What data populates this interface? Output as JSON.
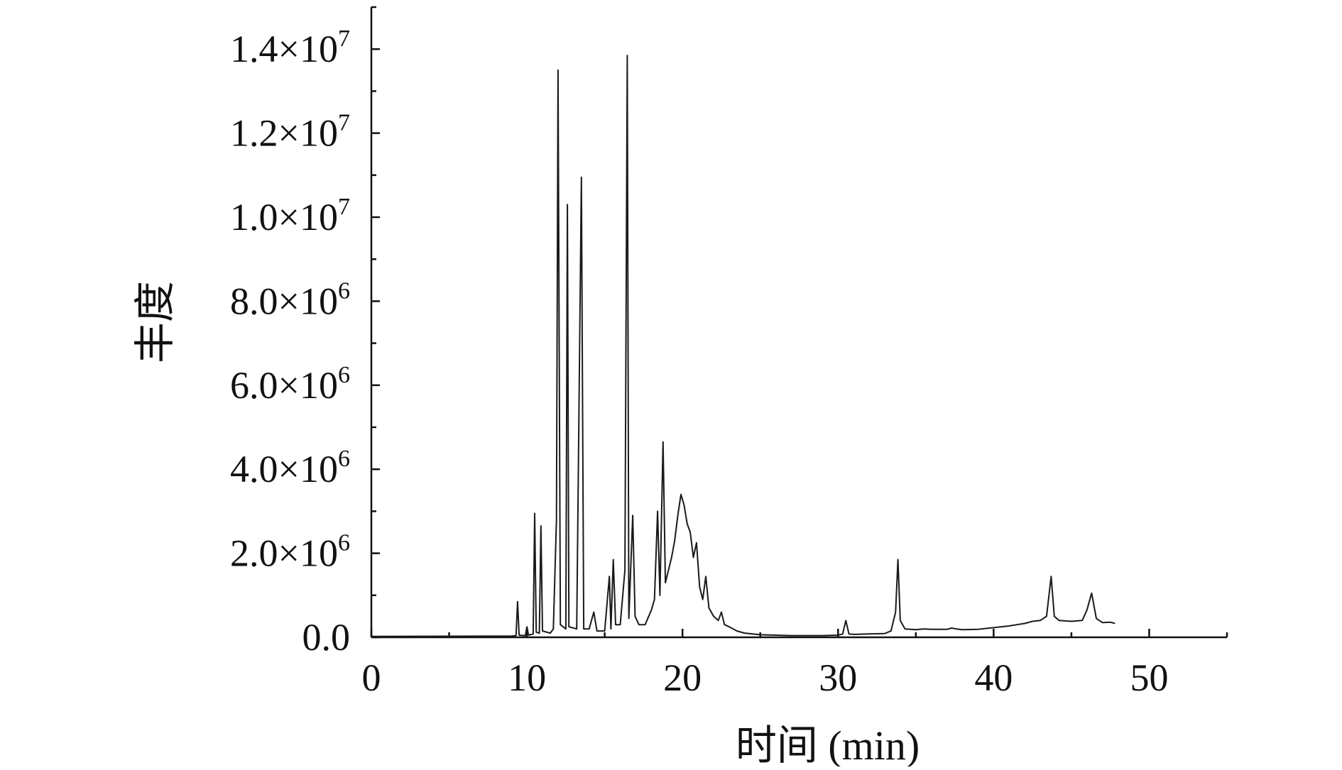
{
  "chart_data": {
    "type": "line",
    "title": "",
    "xlabel": "时间 (min)",
    "ylabel": "丰度",
    "xlim": [
      0,
      55
    ],
    "ylim": [
      0,
      15000000
    ],
    "x_ticks": [
      0,
      10,
      20,
      30,
      40,
      50
    ],
    "x_tick_labels": [
      "0",
      "10",
      "20",
      "30",
      "40",
      "50"
    ],
    "y_ticks": [
      0,
      2000000,
      4000000,
      6000000,
      8000000,
      10000000,
      12000000,
      14000000
    ],
    "y_tick_labels": [
      {
        "mantissa": "0.0",
        "times": "",
        "base": "",
        "exp": ""
      },
      {
        "mantissa": "2.0",
        "times": "×",
        "base": "10",
        "exp": "6"
      },
      {
        "mantissa": "4.0",
        "times": "×",
        "base": "10",
        "exp": "6"
      },
      {
        "mantissa": "6.0",
        "times": "×",
        "base": "10",
        "exp": "6"
      },
      {
        "mantissa": "8.0",
        "times": "×",
        "base": "10",
        "exp": "6"
      },
      {
        "mantissa": "1.0",
        "times": "×",
        "base": "10",
        "exp": "7"
      },
      {
        "mantissa": "1.2",
        "times": "×",
        "base": "10",
        "exp": "7"
      },
      {
        "mantissa": "1.4",
        "times": "×",
        "base": "10",
        "exp": "7"
      }
    ],
    "grid": false,
    "legend": "none",
    "line_color": "#1a1a1a",
    "series": [
      {
        "values": [
          [
            0.0,
            20000
          ],
          [
            9.0,
            30000
          ],
          [
            9.3,
            40000
          ],
          [
            9.4,
            850000
          ],
          [
            9.5,
            50000
          ],
          [
            9.9,
            40000
          ],
          [
            10.0,
            250000
          ],
          [
            10.1,
            50000
          ],
          [
            10.4,
            80000
          ],
          [
            10.5,
            2950000
          ],
          [
            10.6,
            120000
          ],
          [
            10.8,
            100000
          ],
          [
            10.9,
            2650000
          ],
          [
            11.0,
            150000
          ],
          [
            11.5,
            100000
          ],
          [
            11.7,
            200000
          ],
          [
            11.9,
            2800000
          ],
          [
            12.0,
            13500000
          ],
          [
            12.15,
            300000
          ],
          [
            12.5,
            200000
          ],
          [
            12.6,
            10300000
          ],
          [
            12.7,
            250000
          ],
          [
            13.2,
            200000
          ],
          [
            13.5,
            10950000
          ],
          [
            13.65,
            200000
          ],
          [
            14.0,
            200000
          ],
          [
            14.3,
            600000
          ],
          [
            14.5,
            150000
          ],
          [
            15.0,
            150000
          ],
          [
            15.3,
            1450000
          ],
          [
            15.4,
            200000
          ],
          [
            15.55,
            1850000
          ],
          [
            15.7,
            300000
          ],
          [
            16.0,
            300000
          ],
          [
            16.3,
            1600000
          ],
          [
            16.45,
            13850000
          ],
          [
            16.55,
            450000
          ],
          [
            16.8,
            2900000
          ],
          [
            16.95,
            500000
          ],
          [
            17.2,
            300000
          ],
          [
            17.6,
            300000
          ],
          [
            18.0,
            650000
          ],
          [
            18.2,
            900000
          ],
          [
            18.4,
            3000000
          ],
          [
            18.55,
            1000000
          ],
          [
            18.75,
            4650000
          ],
          [
            18.9,
            1300000
          ],
          [
            19.1,
            1600000
          ],
          [
            19.3,
            1900000
          ],
          [
            19.5,
            2300000
          ],
          [
            19.7,
            2900000
          ],
          [
            19.9,
            3400000
          ],
          [
            20.1,
            3150000
          ],
          [
            20.3,
            2700000
          ],
          [
            20.5,
            2500000
          ],
          [
            20.7,
            1900000
          ],
          [
            20.9,
            2250000
          ],
          [
            21.1,
            1200000
          ],
          [
            21.3,
            900000
          ],
          [
            21.5,
            1450000
          ],
          [
            21.7,
            700000
          ],
          [
            22.0,
            500000
          ],
          [
            22.3,
            400000
          ],
          [
            22.5,
            600000
          ],
          [
            22.7,
            300000
          ],
          [
            23.0,
            250000
          ],
          [
            23.5,
            150000
          ],
          [
            24.0,
            100000
          ],
          [
            25.0,
            60000
          ],
          [
            27.0,
            40000
          ],
          [
            29.0,
            40000
          ],
          [
            30.0,
            50000
          ],
          [
            30.3,
            80000
          ],
          [
            30.5,
            400000
          ],
          [
            30.7,
            80000
          ],
          [
            31.0,
            70000
          ],
          [
            32.0,
            80000
          ],
          [
            33.0,
            90000
          ],
          [
            33.4,
            150000
          ],
          [
            33.7,
            600000
          ],
          [
            33.85,
            1850000
          ],
          [
            34.0,
            400000
          ],
          [
            34.3,
            200000
          ],
          [
            35.0,
            180000
          ],
          [
            35.5,
            200000
          ],
          [
            36.0,
            190000
          ],
          [
            37.0,
            190000
          ],
          [
            37.3,
            220000
          ],
          [
            37.6,
            200000
          ],
          [
            38.0,
            180000
          ],
          [
            39.0,
            190000
          ],
          [
            40.0,
            230000
          ],
          [
            41.0,
            270000
          ],
          [
            41.5,
            300000
          ],
          [
            42.0,
            330000
          ],
          [
            42.5,
            380000
          ],
          [
            43.0,
            400000
          ],
          [
            43.4,
            500000
          ],
          [
            43.7,
            1450000
          ],
          [
            43.9,
            500000
          ],
          [
            44.2,
            400000
          ],
          [
            45.0,
            380000
          ],
          [
            45.7,
            400000
          ],
          [
            46.0,
            650000
          ],
          [
            46.3,
            1050000
          ],
          [
            46.6,
            450000
          ],
          [
            47.0,
            350000
          ],
          [
            47.5,
            360000
          ],
          [
            47.8,
            330000
          ]
        ]
      }
    ]
  }
}
